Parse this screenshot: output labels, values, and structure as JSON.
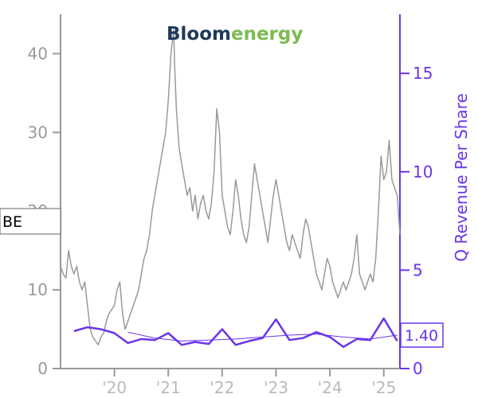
{
  "logo": {
    "part1": "Bloom",
    "part2": "energy",
    "part1_color": "#1f3a5a",
    "part2_color": "#7dbb52"
  },
  "ticker_label": "BE",
  "current_value_label": "1.40",
  "chart_data": {
    "type": "line",
    "title": "",
    "x_tick_labels": [
      "'20",
      "'21",
      "'22",
      "'23",
      "'24",
      "'25"
    ],
    "x_tick_years": [
      2020,
      2021,
      2022,
      2023,
      2024,
      2025
    ],
    "x_range": [
      2019.0,
      2025.3
    ],
    "left_axis": {
      "label": "",
      "range": [
        0,
        45
      ],
      "ticks": [
        0,
        10,
        20,
        30,
        40
      ],
      "color": "#999999"
    },
    "right_axis": {
      "label": "Q Revenue Per Share",
      "range": [
        0,
        18
      ],
      "ticks": [
        0,
        5,
        10,
        15
      ],
      "color": "#6a35e8"
    },
    "series": [
      {
        "name": "BE",
        "axis": "left",
        "color": "#999999",
        "points": [
          [
            2019.0,
            13
          ],
          [
            2019.05,
            12
          ],
          [
            2019.1,
            11.5
          ],
          [
            2019.15,
            15
          ],
          [
            2019.2,
            13
          ],
          [
            2019.25,
            12
          ],
          [
            2019.3,
            13
          ],
          [
            2019.35,
            11
          ],
          [
            2019.4,
            10
          ],
          [
            2019.45,
            11
          ],
          [
            2019.5,
            8
          ],
          [
            2019.55,
            5
          ],
          [
            2019.6,
            4
          ],
          [
            2019.65,
            3.5
          ],
          [
            2019.7,
            3
          ],
          [
            2019.75,
            4
          ],
          [
            2019.8,
            4.5
          ],
          [
            2019.85,
            6
          ],
          [
            2019.9,
            7
          ],
          [
            2019.95,
            7.5
          ],
          [
            2020.0,
            8
          ],
          [
            2020.05,
            10
          ],
          [
            2020.1,
            11
          ],
          [
            2020.15,
            7
          ],
          [
            2020.2,
            5
          ],
          [
            2020.25,
            6
          ],
          [
            2020.3,
            7
          ],
          [
            2020.35,
            8
          ],
          [
            2020.4,
            9
          ],
          [
            2020.45,
            10
          ],
          [
            2020.5,
            12
          ],
          [
            2020.55,
            14
          ],
          [
            2020.6,
            15
          ],
          [
            2020.65,
            17
          ],
          [
            2020.7,
            20
          ],
          [
            2020.75,
            22
          ],
          [
            2020.8,
            24
          ],
          [
            2020.85,
            26
          ],
          [
            2020.9,
            28
          ],
          [
            2020.95,
            30
          ],
          [
            2021.0,
            34
          ],
          [
            2021.05,
            40
          ],
          [
            2021.1,
            43
          ],
          [
            2021.12,
            38
          ],
          [
            2021.15,
            33
          ],
          [
            2021.2,
            28
          ],
          [
            2021.25,
            26
          ],
          [
            2021.3,
            24
          ],
          [
            2021.35,
            22
          ],
          [
            2021.4,
            23
          ],
          [
            2021.45,
            20
          ],
          [
            2021.5,
            22
          ],
          [
            2021.55,
            19
          ],
          [
            2021.6,
            21
          ],
          [
            2021.65,
            22
          ],
          [
            2021.7,
            20
          ],
          [
            2021.75,
            19
          ],
          [
            2021.8,
            21
          ],
          [
            2021.85,
            25
          ],
          [
            2021.9,
            33
          ],
          [
            2021.95,
            30
          ],
          [
            2022.0,
            22
          ],
          [
            2022.05,
            20
          ],
          [
            2022.1,
            18
          ],
          [
            2022.15,
            17
          ],
          [
            2022.2,
            20
          ],
          [
            2022.25,
            24
          ],
          [
            2022.3,
            22
          ],
          [
            2022.35,
            19
          ],
          [
            2022.4,
            17
          ],
          [
            2022.45,
            16
          ],
          [
            2022.5,
            18
          ],
          [
            2022.55,
            22
          ],
          [
            2022.6,
            26
          ],
          [
            2022.65,
            24
          ],
          [
            2022.7,
            22
          ],
          [
            2022.75,
            20
          ],
          [
            2022.8,
            18
          ],
          [
            2022.85,
            16
          ],
          [
            2022.9,
            19
          ],
          [
            2022.95,
            22
          ],
          [
            2023.0,
            24
          ],
          [
            2023.05,
            22
          ],
          [
            2023.1,
            20
          ],
          [
            2023.15,
            18
          ],
          [
            2023.2,
            16
          ],
          [
            2023.25,
            15
          ],
          [
            2023.3,
            17
          ],
          [
            2023.35,
            16
          ],
          [
            2023.4,
            15
          ],
          [
            2023.45,
            14
          ],
          [
            2023.5,
            17
          ],
          [
            2023.55,
            19
          ],
          [
            2023.6,
            18
          ],
          [
            2023.65,
            16
          ],
          [
            2023.7,
            14
          ],
          [
            2023.75,
            12
          ],
          [
            2023.8,
            11
          ],
          [
            2023.85,
            10
          ],
          [
            2023.9,
            12
          ],
          [
            2023.95,
            14
          ],
          [
            2024.0,
            13
          ],
          [
            2024.05,
            11
          ],
          [
            2024.1,
            10
          ],
          [
            2024.15,
            9
          ],
          [
            2024.2,
            10
          ],
          [
            2024.25,
            11
          ],
          [
            2024.3,
            10
          ],
          [
            2024.35,
            11
          ],
          [
            2024.4,
            12
          ],
          [
            2024.45,
            14
          ],
          [
            2024.5,
            17
          ],
          [
            2024.55,
            12
          ],
          [
            2024.6,
            11
          ],
          [
            2024.65,
            10
          ],
          [
            2024.7,
            11
          ],
          [
            2024.75,
            12
          ],
          [
            2024.8,
            11
          ],
          [
            2024.85,
            14
          ],
          [
            2024.9,
            20
          ],
          [
            2024.95,
            27
          ],
          [
            2025.0,
            24
          ],
          [
            2025.05,
            25
          ],
          [
            2025.1,
            29
          ],
          [
            2025.15,
            24
          ],
          [
            2025.2,
            23
          ],
          [
            2025.25,
            22
          ],
          [
            2025.3,
            17
          ]
        ]
      },
      {
        "name": "Q Revenue Per Share",
        "axis": "right",
        "color": "#6a35e8",
        "points": [
          [
            2019.25,
            1.9
          ],
          [
            2019.5,
            2.1
          ],
          [
            2019.75,
            2.0
          ],
          [
            2020.0,
            1.8
          ],
          [
            2020.25,
            1.3
          ],
          [
            2020.5,
            1.5
          ],
          [
            2020.75,
            1.45
          ],
          [
            2021.0,
            1.8
          ],
          [
            2021.25,
            1.2
          ],
          [
            2021.5,
            1.35
          ],
          [
            2021.75,
            1.25
          ],
          [
            2022.0,
            2.0
          ],
          [
            2022.25,
            1.2
          ],
          [
            2022.5,
            1.4
          ],
          [
            2022.75,
            1.55
          ],
          [
            2023.0,
            2.5
          ],
          [
            2023.25,
            1.45
          ],
          [
            2023.5,
            1.55
          ],
          [
            2023.75,
            1.85
          ],
          [
            2024.0,
            1.6
          ],
          [
            2024.25,
            1.1
          ],
          [
            2024.5,
            1.5
          ],
          [
            2024.75,
            1.45
          ],
          [
            2025.0,
            2.55
          ],
          [
            2025.25,
            1.4
          ]
        ]
      },
      {
        "name": "Q Revenue Per Share (trend)",
        "axis": "right",
        "color": "#6a35e8",
        "points": [
          [
            2020.25,
            1.85
          ],
          [
            2020.75,
            1.55
          ],
          [
            2021.25,
            1.4
          ],
          [
            2021.75,
            1.45
          ],
          [
            2022.25,
            1.5
          ],
          [
            2022.75,
            1.6
          ],
          [
            2023.25,
            1.7
          ],
          [
            2023.75,
            1.75
          ],
          [
            2024.25,
            1.6
          ],
          [
            2024.75,
            1.5
          ],
          [
            2025.25,
            1.7
          ]
        ]
      }
    ]
  }
}
